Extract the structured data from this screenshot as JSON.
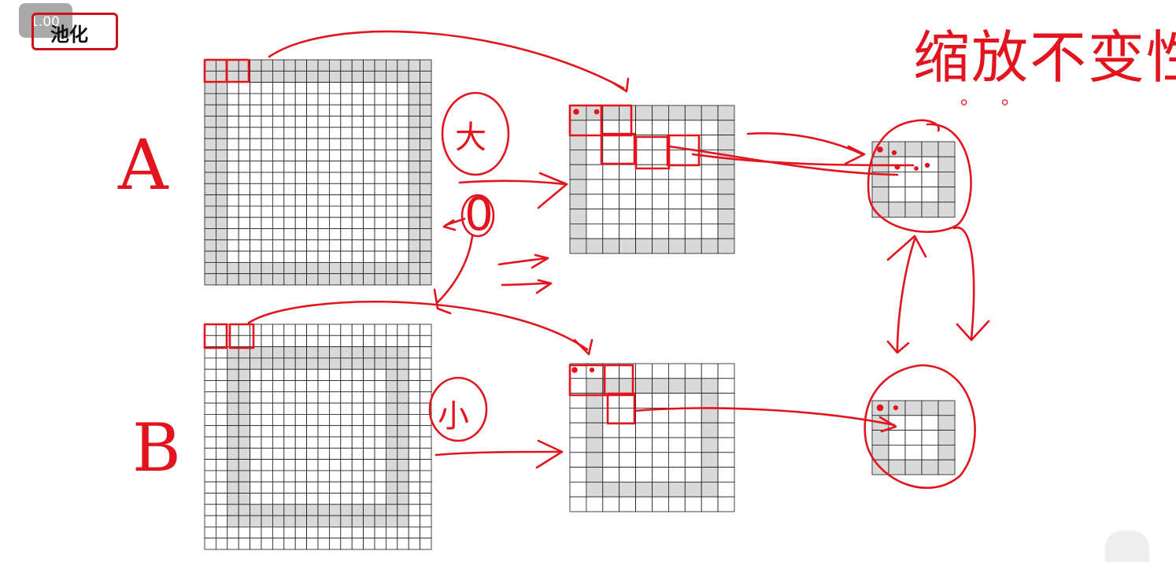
{
  "speed_badge": "1.00",
  "title": "池化",
  "labels": {
    "a": "A",
    "b": "B",
    "large": "大",
    "small": "小",
    "zero": "0",
    "scale_invariance": "缩放不变性",
    "dots": "。。"
  },
  "colors": {
    "ink": "#e2141d",
    "grid_line": "#1a1a1a",
    "shade": "#d9d9d9",
    "background": "#ffffff"
  },
  "grids": [
    {
      "name": "grid-a-input",
      "cells": 20,
      "pattern": "outer-ring-2"
    },
    {
      "name": "grid-b-input",
      "cells": 20,
      "pattern": "inner-ring-2-at-2"
    },
    {
      "name": "grid-a-pooled",
      "cells": 10,
      "pattern": "outer-ring-1"
    },
    {
      "name": "grid-b-pooled",
      "cells": 10,
      "pattern": "inner-ring-1-at-1"
    },
    {
      "name": "grid-a-output",
      "cells": 5,
      "pattern": "outer-ring-1"
    },
    {
      "name": "grid-b-output",
      "cells": 5,
      "pattern": "outer-ring-1"
    }
  ]
}
